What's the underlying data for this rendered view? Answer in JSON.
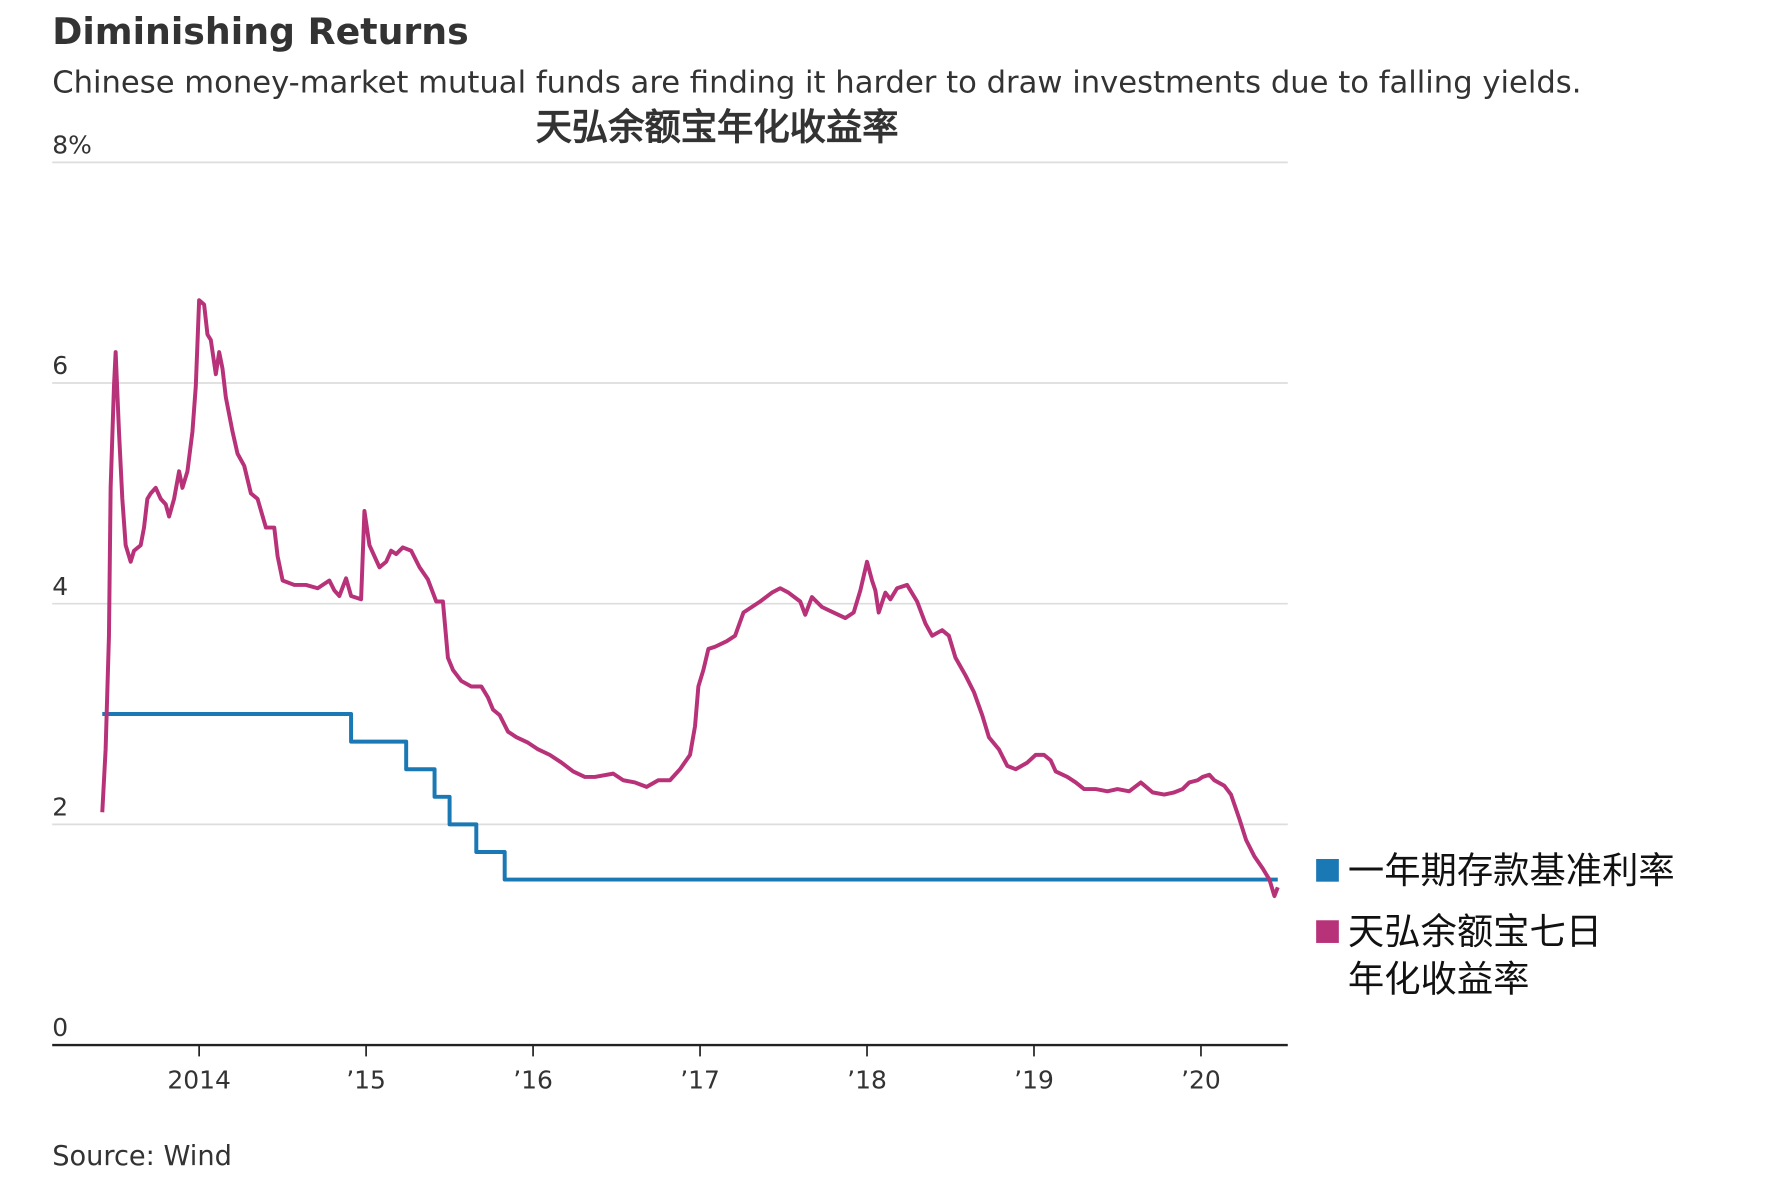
{
  "headline": "Diminishing Returns",
  "subtitle": "Chinese money-market mutual funds are finding it harder to draw investments due to falling yields.",
  "source": "Source: Wind",
  "chart_data": {
    "type": "line",
    "title": "天弘余额宝年化收益率",
    "xlim": [
      2013.12,
      2020.52
    ],
    "xticks": [
      {
        "value": 2014,
        "label": "2014"
      },
      {
        "value": 2015,
        "label": "’15"
      },
      {
        "value": 2016,
        "label": "’16"
      },
      {
        "value": 2017,
        "label": "’17"
      },
      {
        "value": 2018,
        "label": "’18"
      },
      {
        "value": 2019,
        "label": "’19"
      },
      {
        "value": 2020,
        "label": "’20"
      }
    ],
    "ylim": [
      0,
      8
    ],
    "yticks": [
      0,
      2,
      4,
      6,
      {
        "value": 8,
        "label": "8%"
      }
    ],
    "grid": true,
    "legend": "right",
    "series": [
      {
        "name": "一年期存款基准利率",
        "color": "#1a78b4",
        "x": [
          2013.42,
          2014.91,
          2014.91,
          2015.24,
          2015.24,
          2015.41,
          2015.41,
          2015.5,
          2015.5,
          2015.66,
          2015.66,
          2015.83,
          2015.83,
          2020.46
        ],
        "values": [
          3,
          3,
          2.75,
          2.75,
          2.5,
          2.5,
          2.25,
          2.25,
          2,
          2,
          1.75,
          1.75,
          1.5,
          1.5
        ]
      },
      {
        "name": "天弘余额宝七日年化收益率",
        "color": "#b83279",
        "x": [
          2013.42,
          2013.44,
          2013.46,
          2013.47,
          2013.49,
          2013.5,
          2013.52,
          2013.54,
          2013.56,
          2013.59,
          2013.61,
          2013.65,
          2013.67,
          2013.69,
          2013.71,
          2013.74,
          2013.77,
          2013.8,
          2013.82,
          2013.85,
          2013.88,
          2013.9,
          2013.93,
          2013.96,
          2013.98,
          2014.0,
          2014.03,
          2014.05,
          2014.07,
          2014.1,
          2014.12,
          2014.14,
          2014.16,
          2014.2,
          2014.23,
          2014.27,
          2014.31,
          2014.35,
          2014.4,
          2014.45,
          2014.47,
          2014.5,
          2014.57,
          2014.64,
          2014.71,
          2014.78,
          2014.81,
          2014.84,
          2014.88,
          2014.91,
          2014.97,
          2014.99,
          2015.02,
          2015.05,
          2015.08,
          2015.12,
          2015.15,
          2015.18,
          2015.22,
          2015.27,
          2015.32,
          2015.37,
          2015.42,
          2015.46,
          2015.49,
          2015.52,
          2015.57,
          2015.63,
          2015.69,
          2015.73,
          2015.76,
          2015.8,
          2015.85,
          2015.9,
          2015.97,
          2016.03,
          2016.1,
          2016.17,
          2016.24,
          2016.31,
          2016.37,
          2016.48,
          2016.54,
          2016.61,
          2016.68,
          2016.75,
          2016.82,
          2016.88,
          2016.94,
          2016.97,
          2016.99,
          2017.02,
          2017.05,
          2017.09,
          2017.16,
          2017.21,
          2017.26,
          2017.31,
          2017.36,
          2017.43,
          2017.48,
          2017.53,
          2017.6,
          2017.63,
          2017.67,
          2017.73,
          2017.8,
          2017.87,
          2017.92,
          2017.96,
          2018.0,
          2018.03,
          2018.05,
          2018.07,
          2018.11,
          2018.14,
          2018.18,
          2018.24,
          2018.3,
          2018.35,
          2018.39,
          2018.45,
          2018.49,
          2018.53,
          2018.59,
          2018.64,
          2018.69,
          2018.73,
          2018.79,
          2018.84,
          2018.89,
          2018.96,
          2019.01,
          2019.06,
          2019.1,
          2019.13,
          2019.2,
          2019.25,
          2019.3,
          2019.37,
          2019.44,
          2019.5,
          2019.57,
          2019.64,
          2019.71,
          2019.78,
          2019.84,
          2019.89,
          2019.93,
          2019.98,
          2020.01,
          2020.05,
          2020.08,
          2020.14,
          2020.18,
          2020.23,
          2020.27,
          2020.32,
          2020.37,
          2020.41,
          2020.44,
          2020.46
        ],
        "values": [
          2.11,
          2.68,
          3.71,
          5.05,
          5.97,
          6.28,
          5.56,
          4.95,
          4.53,
          4.38,
          4.48,
          4.53,
          4.69,
          4.95,
          5.0,
          5.05,
          4.95,
          4.9,
          4.79,
          4.95,
          5.2,
          5.05,
          5.2,
          5.56,
          5.97,
          6.75,
          6.71,
          6.44,
          6.39,
          6.08,
          6.28,
          6.13,
          5.87,
          5.56,
          5.36,
          5.25,
          5.0,
          4.95,
          4.69,
          4.69,
          4.43,
          4.21,
          4.17,
          4.17,
          4.14,
          4.21,
          4.12,
          4.07,
          4.23,
          4.07,
          4.04,
          4.84,
          4.53,
          4.43,
          4.33,
          4.38,
          4.48,
          4.45,
          4.51,
          4.48,
          4.33,
          4.22,
          4.02,
          4.02,
          3.51,
          3.4,
          3.3,
          3.25,
          3.25,
          3.15,
          3.04,
          2.99,
          2.84,
          2.79,
          2.74,
          2.68,
          2.63,
          2.56,
          2.48,
          2.43,
          2.43,
          2.46,
          2.4,
          2.38,
          2.34,
          2.4,
          2.4,
          2.5,
          2.63,
          2.89,
          3.25,
          3.4,
          3.59,
          3.61,
          3.66,
          3.71,
          3.92,
          3.97,
          4.02,
          4.1,
          4.14,
          4.1,
          4.02,
          3.9,
          4.06,
          3.97,
          3.92,
          3.87,
          3.92,
          4.12,
          4.38,
          4.21,
          4.12,
          3.92,
          4.1,
          4.04,
          4.14,
          4.17,
          4.02,
          3.82,
          3.71,
          3.76,
          3.71,
          3.51,
          3.35,
          3.2,
          2.99,
          2.79,
          2.68,
          2.53,
          2.5,
          2.56,
          2.63,
          2.63,
          2.58,
          2.48,
          2.43,
          2.38,
          2.32,
          2.32,
          2.3,
          2.32,
          2.3,
          2.38,
          2.29,
          2.27,
          2.29,
          2.32,
          2.38,
          2.4,
          2.43,
          2.45,
          2.4,
          2.35,
          2.27,
          2.05,
          1.86,
          1.71,
          1.6,
          1.5,
          1.35,
          1.43
        ]
      }
    ]
  }
}
